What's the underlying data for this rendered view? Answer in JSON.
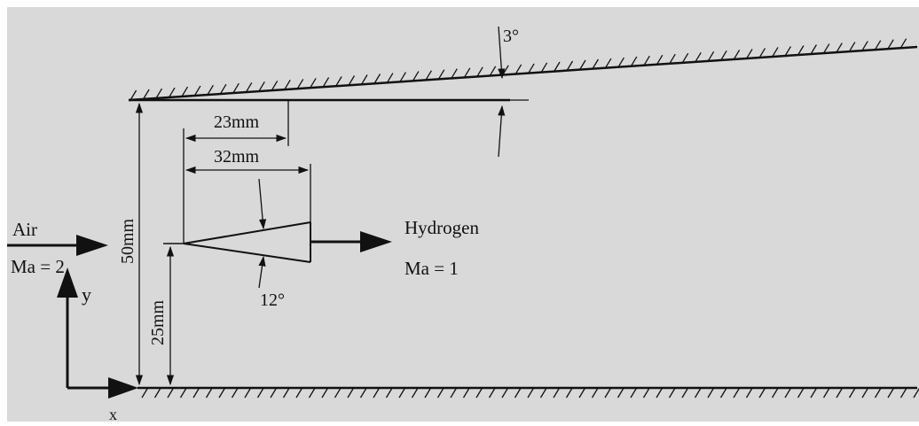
{
  "colors": {
    "background": "#d9d9d9",
    "line": "#111111",
    "frame": "#ffffff"
  },
  "labels": {
    "top_angle": "3°",
    "dim_23": "23mm",
    "dim_32": "32mm",
    "air": "Air",
    "air_mach": "Ma = 2",
    "hydrogen": "Hydrogen",
    "hydrogen_mach": "Ma = 1",
    "wedge_angle": "12°",
    "height_50": "50mm",
    "height_25": "25mm",
    "axis_y": "y",
    "axis_x": "x"
  }
}
